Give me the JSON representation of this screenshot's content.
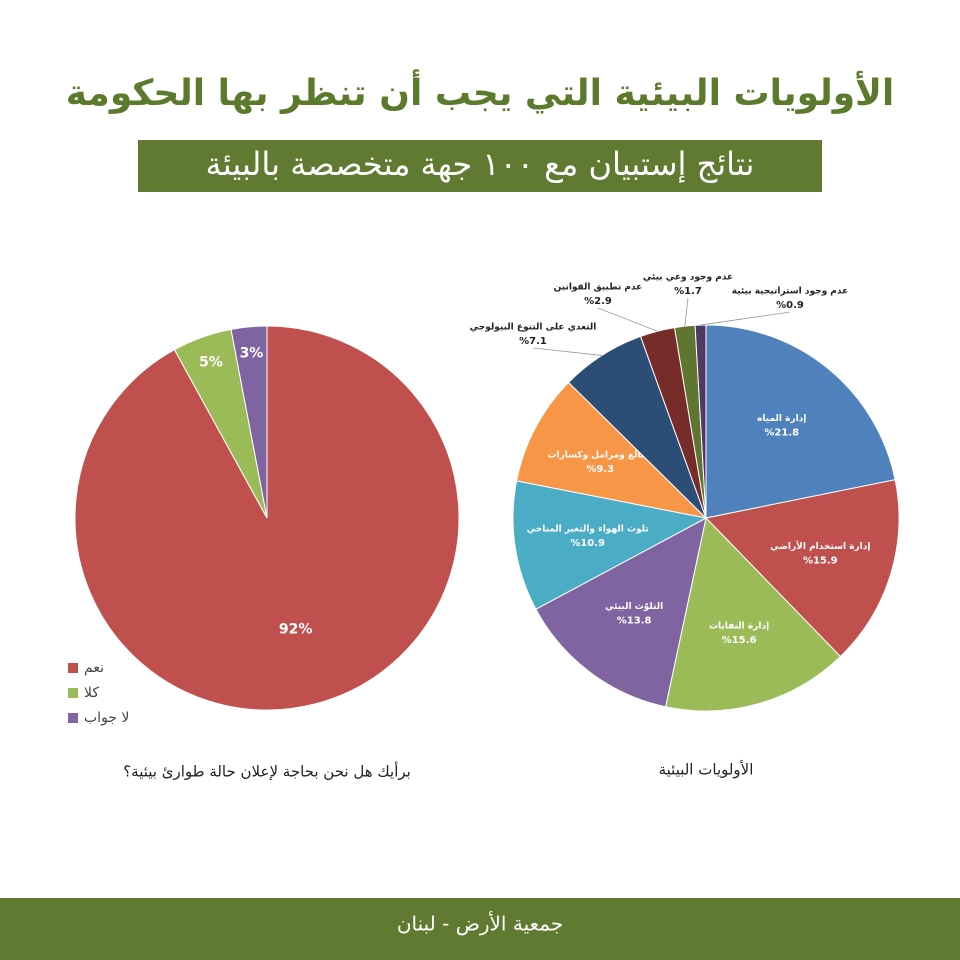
{
  "header": {
    "title": "الأولويات البيئية التي يجب أن تنظر بها الحكومة",
    "subtitle": "نتائج إستبيان مع ١٠٠ جهة متخصصة بالبيئة"
  },
  "footer": "جمعية الأرض - لبنان",
  "chart_data": [
    {
      "type": "pie",
      "title": "برأيك هل نحن بحاجة لإعلان حالة طوارئ بيئية؟",
      "categories": [
        "نعم",
        "كلا",
        "لا جواب"
      ],
      "values": [
        92,
        5,
        3
      ],
      "value_labels": [
        "92%",
        "5%",
        "3%"
      ],
      "colors": [
        "#c0504d",
        "#9bbb59",
        "#8064a2"
      ],
      "legend": "bottom-left"
    },
    {
      "type": "pie",
      "title": "الأولويات البيئية",
      "categories": [
        "إدارة المياه",
        "إدارة استخدام الأراضي",
        "إدارة النفايات",
        "التلوّث البيئي",
        "تلوث الهواء والتغير المناخي",
        "مقالع ومرامل وكسارات",
        "التعدي على التنوع البيولوجي",
        "عدم تطبيق القوانين",
        "عدم وجود وعي بيئي",
        "عدم وجود استراتيجية بيئية"
      ],
      "values": [
        21.8,
        15.9,
        15.6,
        13.8,
        10.9,
        9.3,
        7.1,
        2.9,
        1.7,
        0.9
      ],
      "value_labels": [
        "%21.8",
        "%15.9",
        "%15.6",
        "%13.8",
        "%10.9",
        "%9.3",
        "%7.1",
        "%2.9",
        "%1.7",
        "%0.9"
      ],
      "colors": [
        "#4f81bd",
        "#c0504d",
        "#9bbb59",
        "#8064a2",
        "#4bacc6",
        "#f79646",
        "#2c4d75",
        "#772c2a",
        "#5f7530",
        "#4d3b62"
      ]
    }
  ]
}
